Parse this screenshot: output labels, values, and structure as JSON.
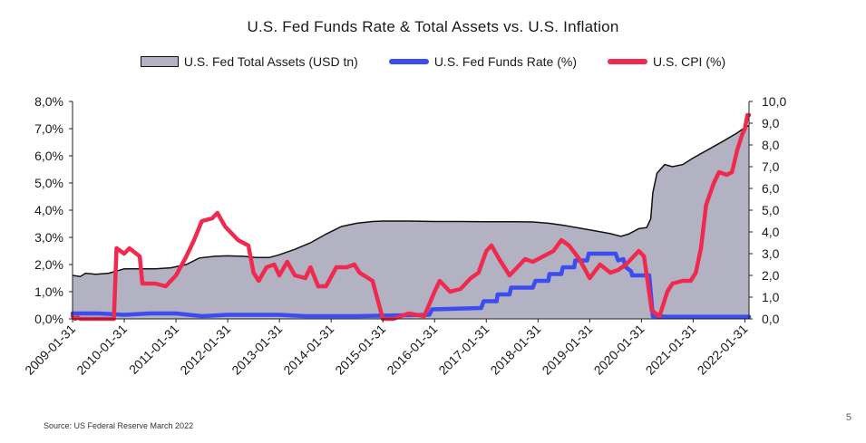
{
  "chart_data": {
    "type": "area",
    "title": "U.S. Fed Funds Rate & Total Assets vs. U.S. Inflation",
    "legend_placement": "top",
    "grid": false,
    "categories": [
      "2009-01-31",
      "2010-01-31",
      "2011-01-31",
      "2012-01-31",
      "2013-01-31",
      "2014-01-31",
      "2015-01-31",
      "2016-01-31",
      "2017-01-31",
      "2018-01-31",
      "2019-01-31",
      "2020-01-31",
      "2021-01-31",
      "2022-01-31"
    ],
    "y_left": {
      "ylim": [
        0,
        8
      ],
      "ticks": [
        "0,0%",
        "1,0%",
        "2,0%",
        "3,0%",
        "4,0%",
        "5,0%",
        "6,0%",
        "7,0%",
        "8,0%"
      ]
    },
    "y_right": {
      "ylim": [
        0,
        10
      ],
      "ticks": [
        "0,0",
        "1,0",
        "2,0",
        "3,0",
        "4,0",
        "5,0",
        "6,0",
        "7,0",
        "8,0",
        "9,0",
        "10,0"
      ]
    },
    "series": [
      {
        "name": "U.S. Fed Total Assets (USD tn)",
        "type": "area",
        "axis": "right",
        "color": "#b3b2c2",
        "points": [
          [
            2009.0,
            2.0
          ],
          [
            2009.15,
            1.95
          ],
          [
            2009.25,
            2.1
          ],
          [
            2009.45,
            2.05
          ],
          [
            2009.7,
            2.1
          ],
          [
            2009.85,
            2.2
          ],
          [
            2010.0,
            2.3
          ],
          [
            2010.3,
            2.3
          ],
          [
            2010.6,
            2.3
          ],
          [
            2010.9,
            2.35
          ],
          [
            2011.2,
            2.5
          ],
          [
            2011.45,
            2.8
          ],
          [
            2011.75,
            2.88
          ],
          [
            2012.0,
            2.9
          ],
          [
            2012.3,
            2.88
          ],
          [
            2012.55,
            2.82
          ],
          [
            2012.8,
            2.82
          ],
          [
            2013.0,
            2.95
          ],
          [
            2013.3,
            3.2
          ],
          [
            2013.6,
            3.5
          ],
          [
            2013.9,
            3.9
          ],
          [
            2014.2,
            4.25
          ],
          [
            2014.5,
            4.4
          ],
          [
            2014.8,
            4.48
          ],
          [
            2015.0,
            4.5
          ],
          [
            2015.5,
            4.5
          ],
          [
            2016.0,
            4.48
          ],
          [
            2016.5,
            4.48
          ],
          [
            2017.0,
            4.47
          ],
          [
            2017.5,
            4.47
          ],
          [
            2017.9,
            4.46
          ],
          [
            2018.2,
            4.4
          ],
          [
            2018.5,
            4.3
          ],
          [
            2018.8,
            4.18
          ],
          [
            2019.1,
            4.05
          ],
          [
            2019.4,
            3.92
          ],
          [
            2019.6,
            3.8
          ],
          [
            2019.75,
            3.9
          ],
          [
            2019.95,
            4.15
          ],
          [
            2020.1,
            4.2
          ],
          [
            2020.18,
            4.6
          ],
          [
            2020.22,
            5.8
          ],
          [
            2020.3,
            6.7
          ],
          [
            2020.45,
            7.1
          ],
          [
            2020.6,
            7.0
          ],
          [
            2020.8,
            7.1
          ],
          [
            2021.0,
            7.4
          ],
          [
            2021.3,
            7.8
          ],
          [
            2021.6,
            8.2
          ],
          [
            2021.85,
            8.55
          ],
          [
            2022.0,
            8.8
          ],
          [
            2022.08,
            8.9
          ]
        ]
      },
      {
        "name": "U.S. Fed Funds Rate (%)",
        "type": "line",
        "axis": "left",
        "color": "#3b4cf0",
        "points": [
          [
            2009.0,
            0.2
          ],
          [
            2009.5,
            0.2
          ],
          [
            2010.0,
            0.15
          ],
          [
            2010.5,
            0.2
          ],
          [
            2011.0,
            0.2
          ],
          [
            2011.5,
            0.1
          ],
          [
            2012.0,
            0.15
          ],
          [
            2012.5,
            0.15
          ],
          [
            2013.0,
            0.15
          ],
          [
            2013.5,
            0.1
          ],
          [
            2014.0,
            0.1
          ],
          [
            2014.5,
            0.1
          ],
          [
            2015.0,
            0.12
          ],
          [
            2015.9,
            0.15
          ],
          [
            2015.95,
            0.35
          ],
          [
            2016.5,
            0.38
          ],
          [
            2016.9,
            0.4
          ],
          [
            2016.95,
            0.65
          ],
          [
            2017.2,
            0.65
          ],
          [
            2017.22,
            0.9
          ],
          [
            2017.45,
            0.9
          ],
          [
            2017.48,
            1.15
          ],
          [
            2017.9,
            1.15
          ],
          [
            2017.95,
            1.4
          ],
          [
            2018.2,
            1.4
          ],
          [
            2018.22,
            1.65
          ],
          [
            2018.45,
            1.65
          ],
          [
            2018.48,
            1.9
          ],
          [
            2018.7,
            1.9
          ],
          [
            2018.72,
            2.15
          ],
          [
            2018.95,
            2.15
          ],
          [
            2018.98,
            2.4
          ],
          [
            2019.5,
            2.4
          ],
          [
            2019.55,
            2.15
          ],
          [
            2019.65,
            2.2
          ],
          [
            2019.7,
            1.9
          ],
          [
            2019.8,
            1.75
          ],
          [
            2019.82,
            1.6
          ],
          [
            2020.15,
            1.6
          ],
          [
            2020.18,
            1.0
          ],
          [
            2020.22,
            0.1
          ],
          [
            2020.5,
            0.08
          ],
          [
            2021.0,
            0.08
          ],
          [
            2021.5,
            0.08
          ],
          [
            2022.0,
            0.08
          ],
          [
            2022.08,
            0.08
          ]
        ]
      },
      {
        "name": "U.S. CPI (%)",
        "type": "line",
        "axis": "left",
        "color": "#f0294e",
        "points": [
          [
            2009.0,
            0.1
          ],
          [
            2009.05,
            0.0
          ],
          [
            2009.1,
            0.05
          ],
          [
            2009.15,
            0.0
          ],
          [
            2009.8,
            0.0
          ],
          [
            2009.85,
            2.6
          ],
          [
            2010.0,
            2.4
          ],
          [
            2010.1,
            2.6
          ],
          [
            2010.3,
            2.3
          ],
          [
            2010.35,
            1.3
          ],
          [
            2010.6,
            1.3
          ],
          [
            2010.8,
            1.2
          ],
          [
            2010.9,
            1.4
          ],
          [
            2011.0,
            1.6
          ],
          [
            2011.2,
            2.3
          ],
          [
            2011.35,
            2.9
          ],
          [
            2011.5,
            3.6
          ],
          [
            2011.7,
            3.7
          ],
          [
            2011.8,
            3.9
          ],
          [
            2011.95,
            3.4
          ],
          [
            2012.2,
            2.9
          ],
          [
            2012.4,
            2.7
          ],
          [
            2012.5,
            1.7
          ],
          [
            2012.6,
            1.4
          ],
          [
            2012.75,
            1.9
          ],
          [
            2012.9,
            2.0
          ],
          [
            2013.0,
            1.6
          ],
          [
            2013.15,
            2.1
          ],
          [
            2013.3,
            1.6
          ],
          [
            2013.5,
            1.5
          ],
          [
            2013.6,
            1.9
          ],
          [
            2013.75,
            1.2
          ],
          [
            2013.9,
            1.2
          ],
          [
            2014.1,
            1.9
          ],
          [
            2014.3,
            1.9
          ],
          [
            2014.45,
            2.0
          ],
          [
            2014.55,
            1.7
          ],
          [
            2014.8,
            1.4
          ],
          [
            2015.0,
            0.0
          ],
          [
            2015.2,
            -0.2
          ],
          [
            2015.5,
            0.2
          ],
          [
            2015.8,
            0.1
          ],
          [
            2016.0,
            1.0
          ],
          [
            2016.1,
            1.4
          ],
          [
            2016.3,
            1.0
          ],
          [
            2016.5,
            1.1
          ],
          [
            2016.7,
            1.5
          ],
          [
            2016.85,
            1.7
          ],
          [
            2017.0,
            2.5
          ],
          [
            2017.1,
            2.7
          ],
          [
            2017.25,
            2.2
          ],
          [
            2017.45,
            1.6
          ],
          [
            2017.6,
            1.9
          ],
          [
            2017.75,
            2.2
          ],
          [
            2017.9,
            2.1
          ],
          [
            2018.0,
            2.2
          ],
          [
            2018.3,
            2.5
          ],
          [
            2018.45,
            2.9
          ],
          [
            2018.6,
            2.7
          ],
          [
            2018.8,
            2.2
          ],
          [
            2019.0,
            1.5
          ],
          [
            2019.2,
            2.0
          ],
          [
            2019.4,
            1.7
          ],
          [
            2019.55,
            1.8
          ],
          [
            2019.7,
            2.0
          ],
          [
            2019.85,
            2.3
          ],
          [
            2019.95,
            2.5
          ],
          [
            2020.05,
            2.3
          ],
          [
            2020.2,
            0.3
          ],
          [
            2020.35,
            0.1
          ],
          [
            2020.5,
            1.0
          ],
          [
            2020.6,
            1.3
          ],
          [
            2020.8,
            1.4
          ],
          [
            2020.95,
            1.4
          ],
          [
            2021.05,
            1.7
          ],
          [
            2021.15,
            2.6
          ],
          [
            2021.25,
            4.2
          ],
          [
            2021.4,
            5.0
          ],
          [
            2021.5,
            5.4
          ],
          [
            2021.65,
            5.3
          ],
          [
            2021.75,
            5.4
          ],
          [
            2021.85,
            6.2
          ],
          [
            2021.95,
            6.8
          ],
          [
            2022.0,
            7.0
          ],
          [
            2022.05,
            7.5
          ],
          [
            2022.08,
            7.5
          ]
        ]
      }
    ]
  },
  "source": "Source: US Federal Reserve March 2022",
  "page_number": "5"
}
